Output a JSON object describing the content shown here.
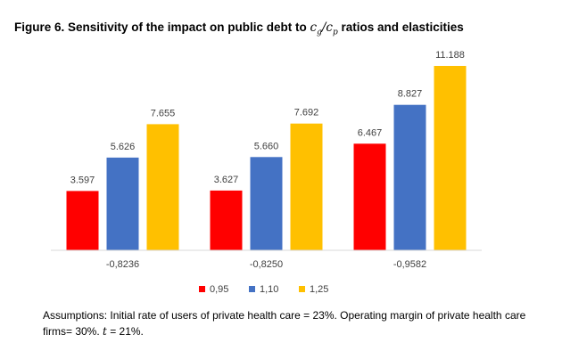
{
  "title": {
    "prefix": "Figure 6. Sensitivity of the impact on public debt to ",
    "cg_base": "c",
    "cg_sub": "g",
    "slash": "/",
    "cp_base": "c",
    "cp_sub": "p",
    "suffix": " ratios and elasticities"
  },
  "footnote": {
    "part1": "Assumptions: Initial rate of users of private health care = 23%. Operating margin of private health care firms= 30%. ",
    "t_var": "t",
    "part2": " = 21%."
  },
  "colors": {
    "series_095": "#ff0000",
    "series_110": "#4472c4",
    "series_125": "#ffc000",
    "axis": "#d9d9d9",
    "label_text": "#404040"
  },
  "chart_data": {
    "type": "bar",
    "categories": [
      "-0,8236",
      "-0,8250",
      "-0,9582"
    ],
    "series": [
      {
        "name": "0,95",
        "values": [
          3.597,
          3.627,
          6.467
        ],
        "labels": [
          "3.597",
          "3.627",
          "6.467"
        ]
      },
      {
        "name": "1,10",
        "values": [
          5.626,
          5.66,
          8.827
        ],
        "labels": [
          "5.626",
          "5.660",
          "8.827"
        ]
      },
      {
        "name": "1,25",
        "values": [
          7.655,
          7.692,
          11.188
        ],
        "labels": [
          "7.655",
          "7.692",
          "11.188"
        ]
      }
    ],
    "ylim": [
      0,
      11.188
    ],
    "grid": false,
    "y_axis_visible": false,
    "legend_position": "bottom"
  }
}
